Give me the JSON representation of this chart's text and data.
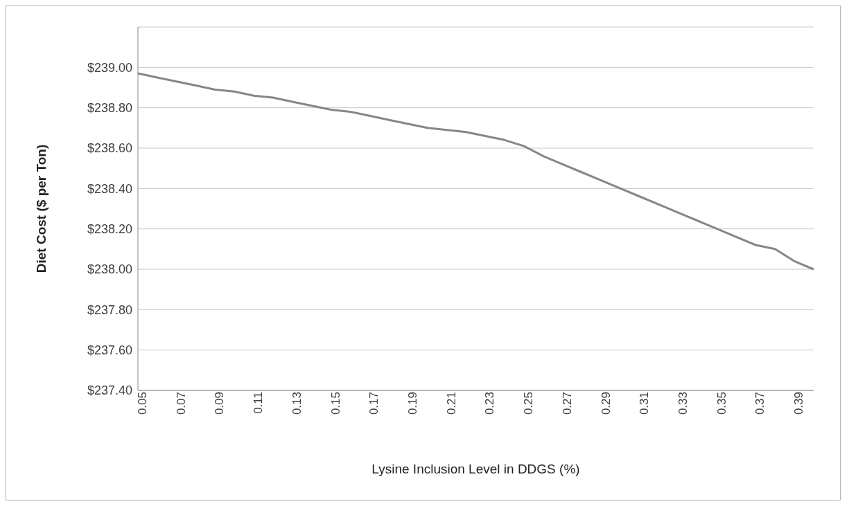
{
  "chart_data": {
    "type": "line",
    "xlabel": "Lysine Inclusion Level in DDGS (%)",
    "ylabel": "Diet Cost ($ per Ton)",
    "categories": [
      "0.05",
      null,
      "0.07",
      null,
      "0.09",
      null,
      "0.11",
      null,
      "0.13",
      null,
      "0.15",
      null,
      "0.17",
      null,
      "0.19",
      null,
      "0.21",
      null,
      "0.23",
      null,
      "0.25",
      null,
      "0.27",
      null,
      "0.29",
      null,
      "0.31",
      null,
      "0.33",
      null,
      "0.35",
      null,
      "0.37",
      null,
      "0.39",
      null
    ],
    "series": [
      {
        "color": "#8c8484",
        "values": [
          238.97,
          238.95,
          238.93,
          238.91,
          238.89,
          238.88,
          238.86,
          238.85,
          238.83,
          238.81,
          238.79,
          238.78,
          238.76,
          238.74,
          238.72,
          238.7,
          238.69,
          238.68,
          238.66,
          238.64,
          238.61,
          238.56,
          238.52,
          238.48,
          238.44,
          238.4,
          238.36,
          238.32,
          238.28,
          238.24,
          238.2,
          238.16,
          238.12,
          238.1,
          238.04,
          238.0
        ]
      }
    ],
    "ylim": [
      237.4,
      239.2
    ],
    "yticks": [
      {
        "value": 237.4,
        "label": "$237.40"
      },
      {
        "value": 237.6,
        "label": "$237.60"
      },
      {
        "value": 237.8,
        "label": "$237.80"
      },
      {
        "value": 238,
        "label": "$238.00"
      },
      {
        "value": 238.2,
        "label": "$238.20"
      },
      {
        "value": 238.4,
        "label": "$238.40"
      },
      {
        "value": 238.6,
        "label": "$238.60"
      },
      {
        "value": 238.8,
        "label": "$238.80"
      },
      {
        "value": 239,
        "label": "$239.00"
      }
    ],
    "grid": "y",
    "legend": false,
    "marker": "none",
    "line_style": "solid"
  }
}
